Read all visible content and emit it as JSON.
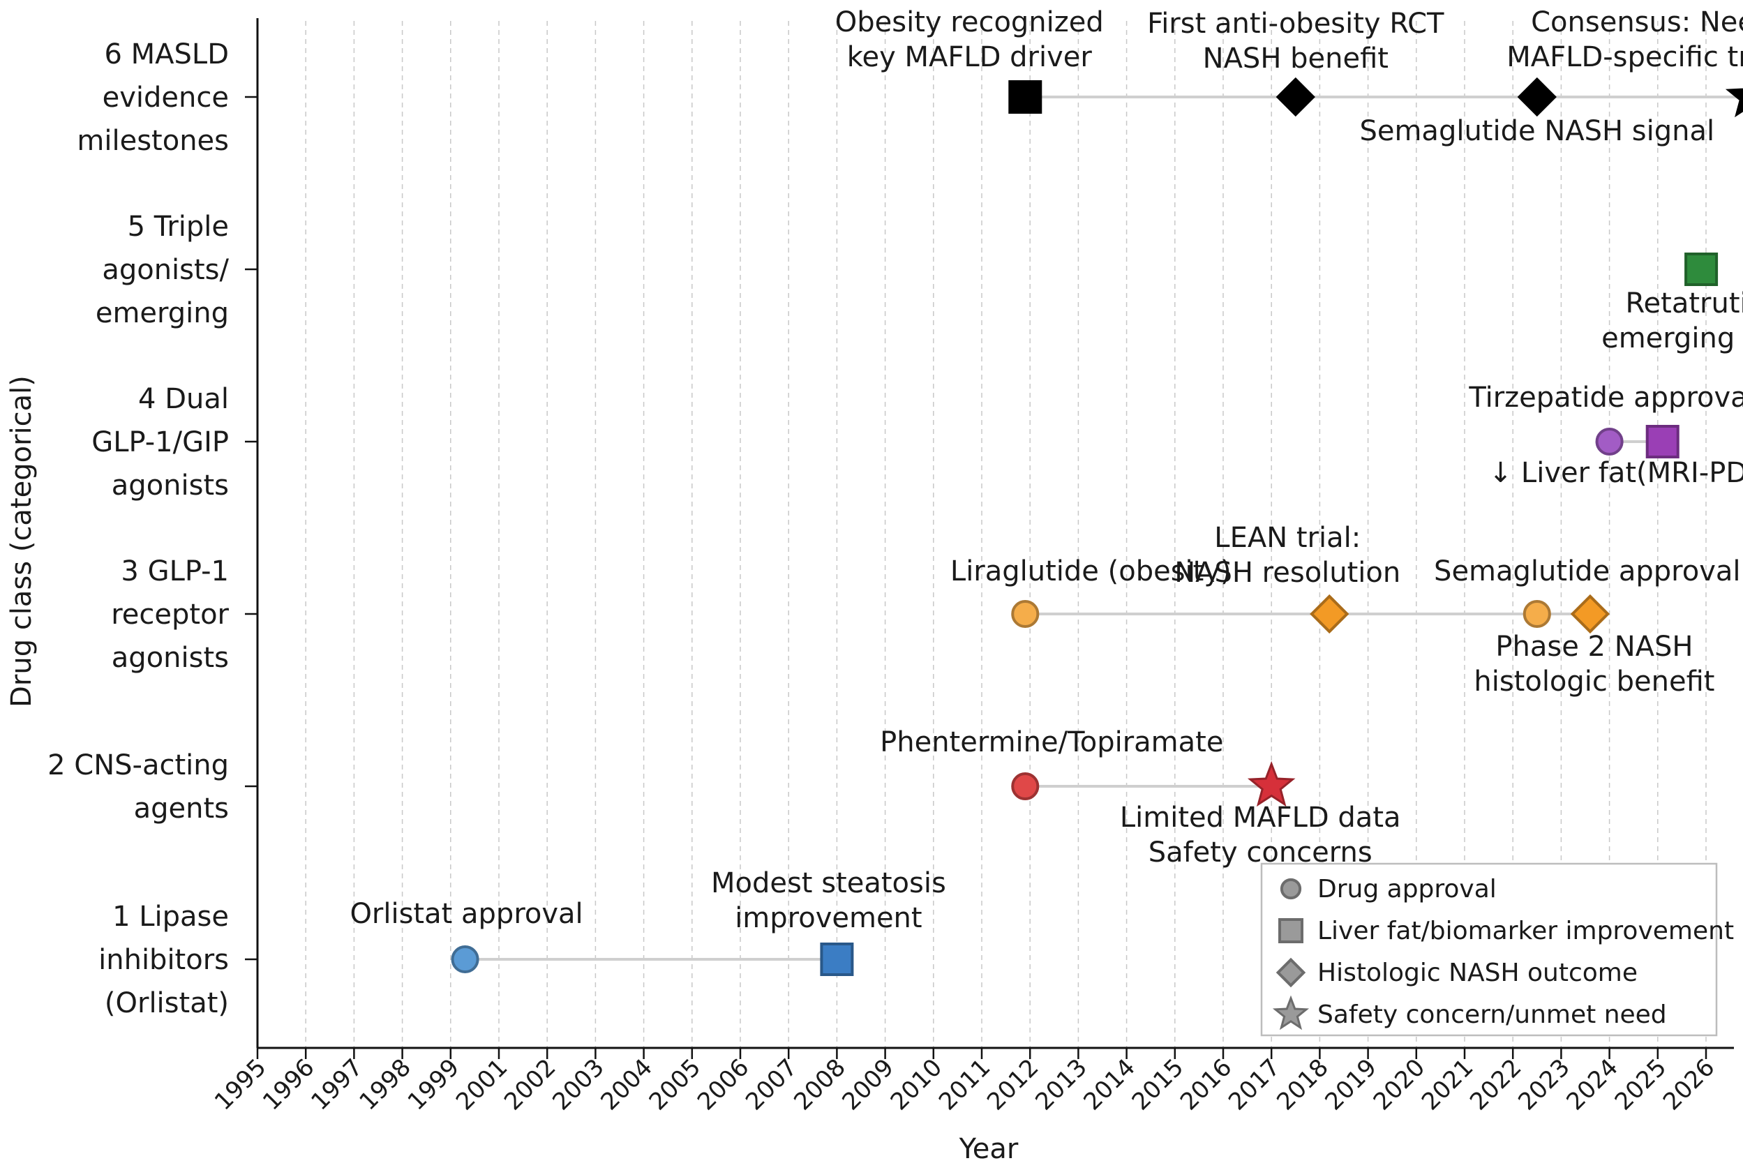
{
  "chart_data": {
    "type": "scatter",
    "xlabel": "Year",
    "ylabel": "Drug class (categorical)",
    "xlim": [
      1995,
      2026
    ],
    "x_tick_labels": [
      "1995",
      "1996",
      "1997",
      "1998",
      "1999",
      "2001",
      "2002",
      "2003",
      "2004",
      "2005",
      "2006",
      "2007",
      "2008",
      "2009",
      "2010",
      "2011",
      "2012",
      "2013",
      "2014",
      "2015",
      "2016",
      "2017",
      "2018",
      "2019",
      "2020",
      "2021",
      "2022",
      "2023",
      "2024",
      "2025",
      "2026"
    ],
    "categories": [
      {
        "id": 1,
        "label": [
          "1 Lipase",
          "inhibitors",
          "(Orlistat)"
        ]
      },
      {
        "id": 2,
        "label": [
          "2 CNS-acting",
          "agents"
        ]
      },
      {
        "id": 3,
        "label": [
          "3 GLP-1",
          "receptor",
          "agonists"
        ]
      },
      {
        "id": 4,
        "label": [
          "4 Dual",
          "GLP-1/GIP",
          "agonists"
        ]
      },
      {
        "id": 5,
        "label": [
          "5 Triple",
          "agonists/",
          "emerging"
        ]
      },
      {
        "id": 6,
        "label": [
          "6 MASLD",
          "evidence",
          "milestones"
        ]
      }
    ],
    "grid": "vertical dashed",
    "legend_position": "bottom-right",
    "legend": [
      {
        "marker": "circle",
        "label": "Drug approval"
      },
      {
        "marker": "square",
        "label": "Liver fat/biomarker improvement"
      },
      {
        "marker": "diamond",
        "label": "Histologic NASH outcome"
      },
      {
        "marker": "star",
        "label": "Safety concern/unmet need"
      }
    ],
    "events": [
      {
        "category": 1,
        "x": 1999.3,
        "marker": "circle",
        "color": "#5b9bd5",
        "label": [
          "Orlistat approval"
        ]
      },
      {
        "category": 1,
        "x": 2007.0,
        "marker": "square",
        "color": "#3b7dc4",
        "label": [
          "Modest steatosis",
          "improvement"
        ]
      },
      {
        "category": 2,
        "x": 2010.9,
        "marker": "circle",
        "color": "#e04848",
        "label": [
          "Phentermine/Topiramate"
        ]
      },
      {
        "category": 2,
        "x": 2016.0,
        "marker": "star",
        "color": "#d6303a",
        "label": [
          "Limited MAFLD data",
          "Safety concerns"
        ]
      },
      {
        "category": 3,
        "x": 2010.9,
        "marker": "circle",
        "color": "#f5ad4a",
        "label": [
          "Liraglutide (obesity)"
        ]
      },
      {
        "category": 3,
        "x": 2017.2,
        "marker": "diamond",
        "color": "#f39a25",
        "label": [
          "LEAN trial:",
          "NASH resolution"
        ]
      },
      {
        "category": 3,
        "x": 2021.5,
        "marker": "circle",
        "color": "#f5ad4a",
        "label": [
          "Semaglutide approval"
        ]
      },
      {
        "category": 3,
        "x": 2022.6,
        "marker": "diamond",
        "color": "#f39a25",
        "label": [
          "Phase 2 NASH",
          "histologic benefit"
        ]
      },
      {
        "category": 4,
        "x": 2023.0,
        "marker": "circle",
        "color": "#a25cc5",
        "label": [
          "Tirzepatide approval"
        ]
      },
      {
        "category": 4,
        "x": 2024.1,
        "marker": "square",
        "color": "#9a3fb5",
        "label": [
          "↓ Liver fat(MRI-PDFF)"
        ]
      },
      {
        "category": 5,
        "x": 2024.9,
        "marker": "square",
        "color": "#2e8b3c",
        "label": [
          "Retatrutide",
          "emerging data"
        ]
      },
      {
        "category": 6,
        "x": 2010.9,
        "marker": "square",
        "color": "#000000",
        "label": [
          "Obesity recognized",
          "key MAFLD driver"
        ]
      },
      {
        "category": 6,
        "x": 2016.5,
        "marker": "diamond",
        "color": "#000000",
        "label": [
          "First anti-obesity RCT",
          "NASH benefit"
        ]
      },
      {
        "category": 6,
        "x": 2021.5,
        "marker": "diamond",
        "color": "#000000",
        "label": [
          "Semaglutide NASH signal"
        ]
      },
      {
        "category": 6,
        "x": 2025.9,
        "marker": "star",
        "color": "#000000",
        "label": [
          "Consensus: Need",
          "MAFLD-specific trials"
        ]
      }
    ]
  }
}
